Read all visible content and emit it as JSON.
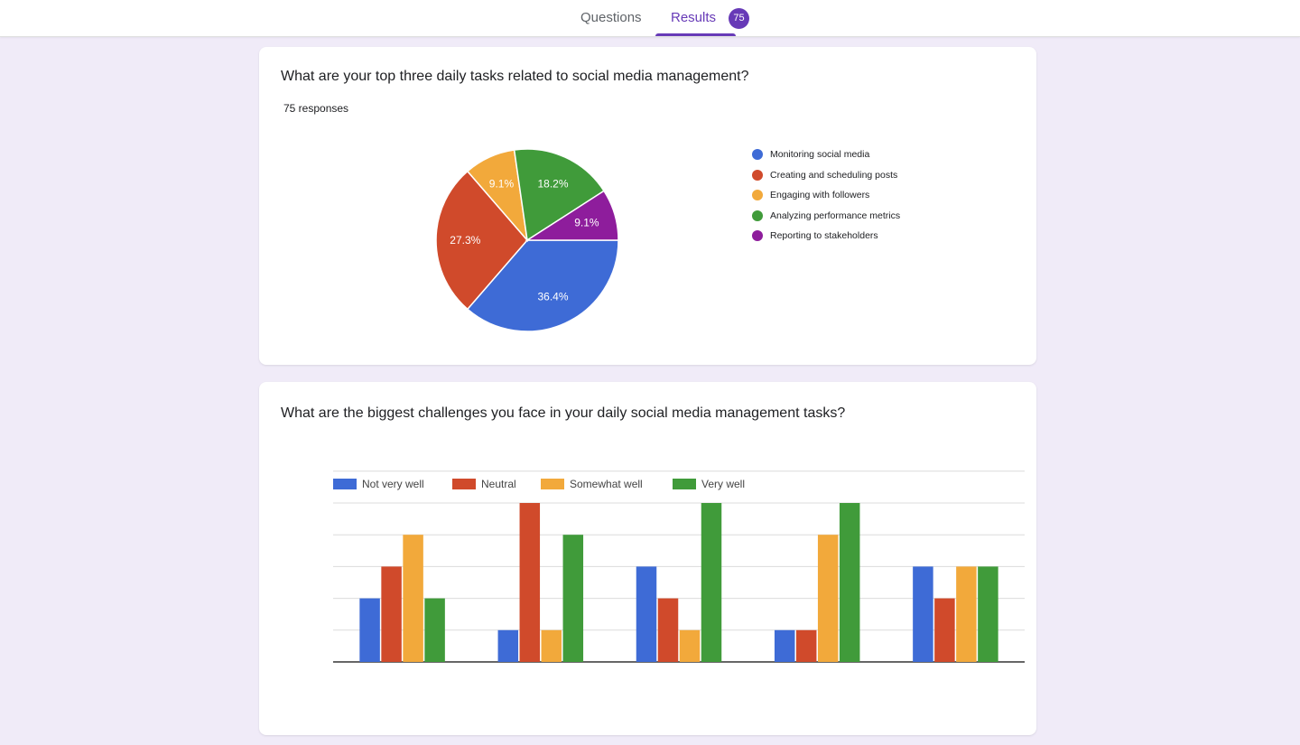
{
  "tabs": {
    "questions_label": "Questions",
    "results_label": "Results",
    "results_count": "75"
  },
  "card1": {
    "question": "What are your top three daily tasks related to social media management?",
    "responses": "75 responses"
  },
  "card2": {
    "question": "What are the biggest challenges you face in your daily social media management tasks?"
  },
  "colors": {
    "accent": "#673ab7",
    "blue": "#3e6bd6",
    "red": "#d04a2b",
    "orange": "#f2a93b",
    "green": "#409b3a",
    "purple": "#8e1d9c"
  },
  "chart_data": [
    {
      "type": "pie",
      "title": "",
      "slices": [
        {
          "label": "Monitoring social media",
          "value": 36.4,
          "display": "36.4%",
          "color": "#3e6bd6"
        },
        {
          "label": "Creating and scheduling posts",
          "value": 27.3,
          "display": "27.3%",
          "color": "#d04a2b"
        },
        {
          "label": "Engaging with followers",
          "value": 9.1,
          "display": "9.1%",
          "color": "#f2a93b"
        },
        {
          "label": "Analyzing performance metrics",
          "value": 18.2,
          "display": "18.2%",
          "color": "#409b3a"
        },
        {
          "label": "Reporting to stakeholders",
          "value": 9.1,
          "display": "9.1%",
          "color": "#8e1d9c"
        }
      ],
      "legend_position": "right"
    },
    {
      "type": "bar",
      "title": "",
      "xlabel": "",
      "ylabel": "",
      "categories": [
        "",
        "",
        "",
        "",
        ""
      ],
      "series": [
        {
          "name": "Not very well",
          "color": "#3e6bd6",
          "values": [
            2,
            1,
            3,
            1,
            3
          ]
        },
        {
          "name": "Neutral",
          "color": "#d04a2b",
          "values": [
            3,
            5,
            2,
            1,
            2
          ]
        },
        {
          "name": "Somewhat well",
          "color": "#f2a93b",
          "values": [
            4,
            1,
            1,
            4,
            3
          ]
        },
        {
          "name": "Very well",
          "color": "#409b3a",
          "values": [
            2,
            4,
            5,
            5,
            3
          ]
        }
      ],
      "ylim": [
        0,
        6
      ],
      "grid": true,
      "legend_position": "top-left"
    }
  ]
}
